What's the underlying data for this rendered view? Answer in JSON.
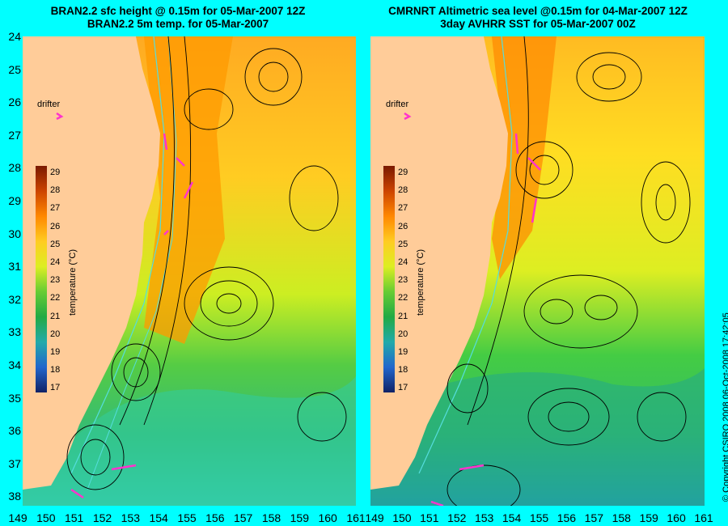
{
  "left_panel": {
    "title_line1": "BRAN2.2 sfc height @ 0.15m for 05-Mar-2007 12Z",
    "title_line2": "BRAN2.2 5m temp. for 05-Mar-2007"
  },
  "right_panel": {
    "title_line1": "CMRNRT Altimetric sea level  @0.15m  for 04-Mar-2007 12Z",
    "title_line2": "3day AVHRR SST for 05-Mar-2007 00Z"
  },
  "y_ticks": [
    "24",
    "25",
    "26",
    "27",
    "28",
    "29",
    "30",
    "31",
    "32",
    "33",
    "34",
    "35",
    "36",
    "37",
    "38"
  ],
  "x_ticks": [
    "149",
    "150",
    "151",
    "152",
    "153",
    "154",
    "155",
    "156",
    "157",
    "158",
    "159",
    "160",
    "161"
  ],
  "colorbar": {
    "label": "temperature (°C)",
    "ticks": [
      "29",
      "28",
      "27",
      "26",
      "25",
      "24",
      "23",
      "22",
      "21",
      "20",
      "19",
      "18",
      "17"
    ]
  },
  "drifter_label": "drifter",
  "copyright": "© Copyright CSIRO 2008   06-Oct-2008 17:42:05",
  "colors": {
    "background": "#00ffff",
    "land": "#ffcc99",
    "warm": "#ff8800",
    "mid": "#ffdd00",
    "cool": "#33cc33",
    "cold": "#22bbaa",
    "contour": "#000000",
    "bathymetry": "#55dddd",
    "drifter_arrow": "#ff33cc"
  }
}
